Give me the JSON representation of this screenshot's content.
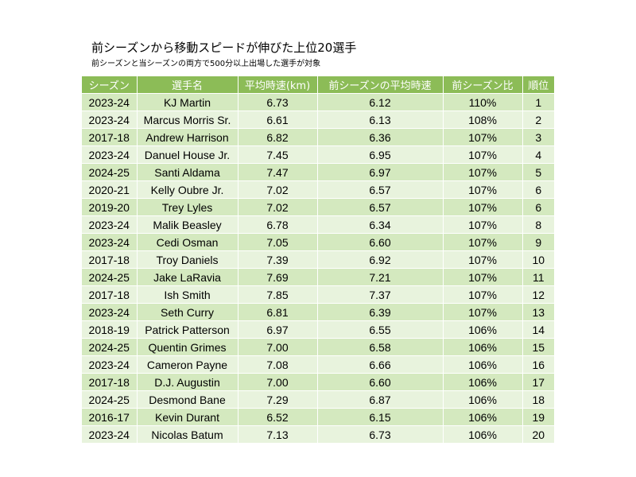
{
  "title": "前シーズンから移動スピードが伸びた上位20選手",
  "subtitle": "前シーズンと当シーズンの両方で500分以上出場した選手が対象",
  "colors": {
    "header": "#8cbc57",
    "row_odd": "#d4e9bf",
    "row_even": "#e8f3dd"
  },
  "chart_data": {
    "type": "table",
    "columns": [
      "シーズン",
      "選手名",
      "平均時速(km)",
      "前シーズンの平均時速",
      "前シーズン比",
      "順位"
    ],
    "rows": [
      [
        "2023-24",
        "KJ Martin",
        "6.73",
        "6.12",
        "110%",
        "1"
      ],
      [
        "2023-24",
        "Marcus Morris Sr.",
        "6.61",
        "6.13",
        "108%",
        "2"
      ],
      [
        "2017-18",
        "Andrew Harrison",
        "6.82",
        "6.36",
        "107%",
        "3"
      ],
      [
        "2023-24",
        "Danuel House Jr.",
        "7.45",
        "6.95",
        "107%",
        "4"
      ],
      [
        "2024-25",
        "Santi Aldama",
        "7.47",
        "6.97",
        "107%",
        "5"
      ],
      [
        "2020-21",
        "Kelly Oubre Jr.",
        "7.02",
        "6.57",
        "107%",
        "6"
      ],
      [
        "2019-20",
        "Trey Lyles",
        "7.02",
        "6.57",
        "107%",
        "6"
      ],
      [
        "2023-24",
        "Malik Beasley",
        "6.78",
        "6.34",
        "107%",
        "8"
      ],
      [
        "2023-24",
        "Cedi Osman",
        "7.05",
        "6.60",
        "107%",
        "9"
      ],
      [
        "2017-18",
        "Troy Daniels",
        "7.39",
        "6.92",
        "107%",
        "10"
      ],
      [
        "2024-25",
        "Jake LaRavia",
        "7.69",
        "7.21",
        "107%",
        "11"
      ],
      [
        "2017-18",
        "Ish Smith",
        "7.85",
        "7.37",
        "107%",
        "12"
      ],
      [
        "2023-24",
        "Seth Curry",
        "6.81",
        "6.39",
        "107%",
        "13"
      ],
      [
        "2018-19",
        "Patrick Patterson",
        "6.97",
        "6.55",
        "106%",
        "14"
      ],
      [
        "2024-25",
        "Quentin Grimes",
        "7.00",
        "6.58",
        "106%",
        "15"
      ],
      [
        "2023-24",
        "Cameron Payne",
        "7.08",
        "6.66",
        "106%",
        "16"
      ],
      [
        "2017-18",
        "D.J. Augustin",
        "7.00",
        "6.60",
        "106%",
        "17"
      ],
      [
        "2024-25",
        "Desmond Bane",
        "7.29",
        "6.87",
        "106%",
        "18"
      ],
      [
        "2016-17",
        "Kevin Durant",
        "6.52",
        "6.15",
        "106%",
        "19"
      ],
      [
        "2023-24",
        "Nicolas Batum",
        "7.13",
        "6.73",
        "106%",
        "20"
      ]
    ]
  }
}
